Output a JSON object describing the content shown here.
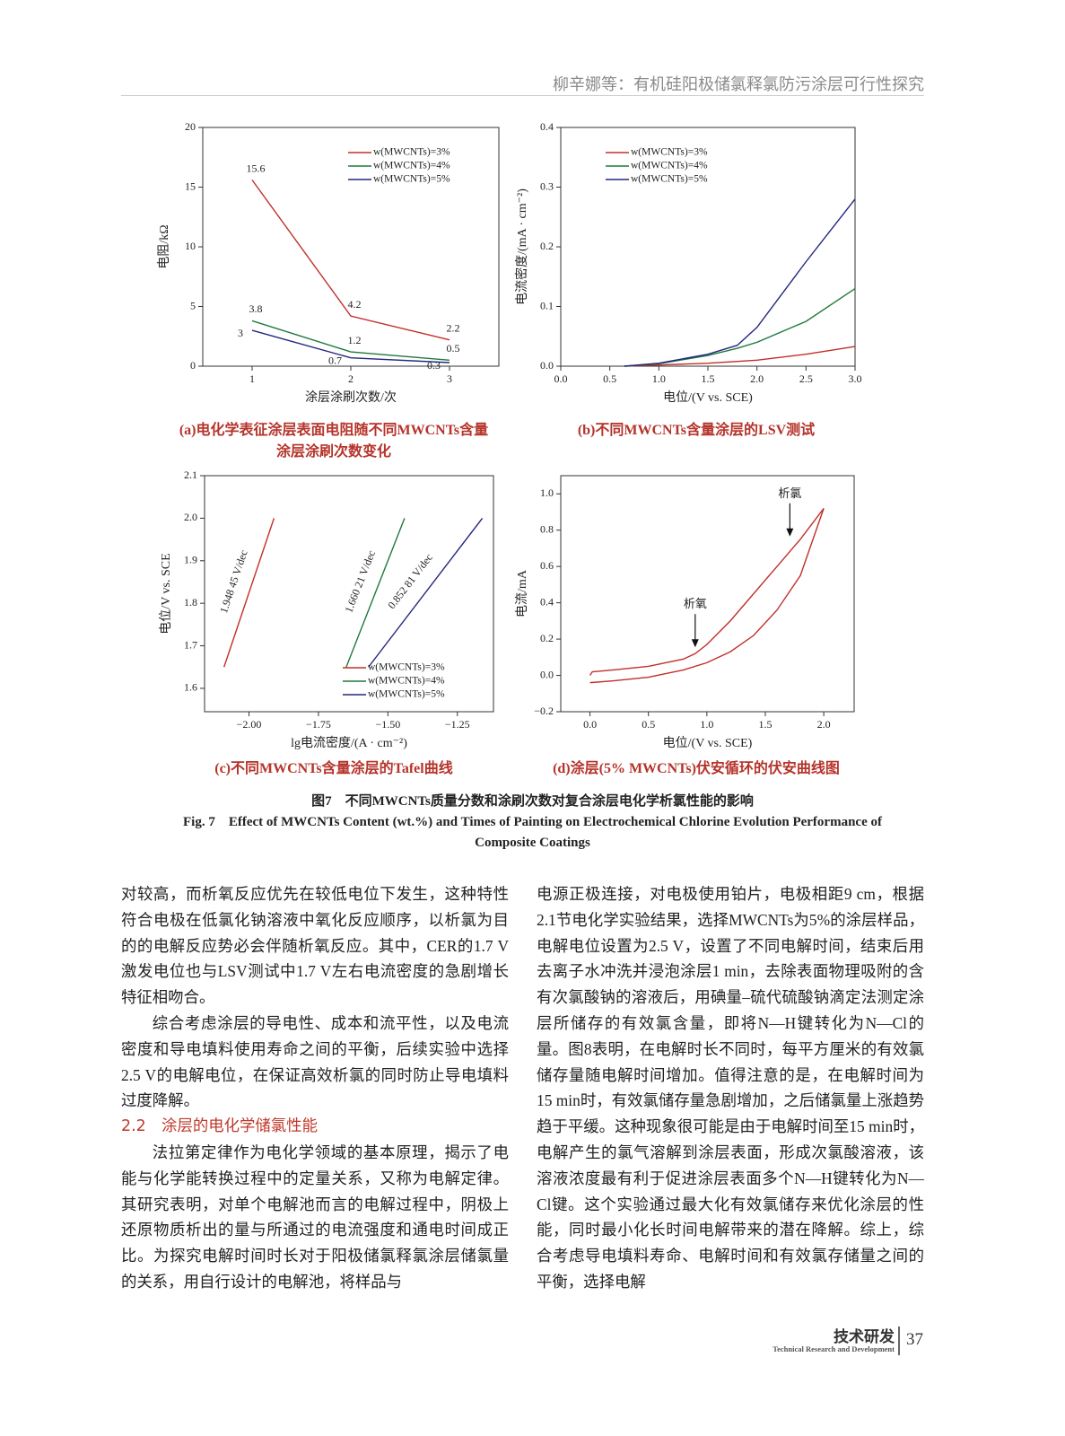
{
  "header": {
    "running_title": "柳辛娜等：有机硅阳极储氯释氯防污涂层可行性探究"
  },
  "chart_data": [
    {
      "type": "line",
      "xlabel": "涂层涂刷次数/次",
      "ylabel": "电阻/kΩ",
      "xlim": [
        0.5,
        3.5
      ],
      "ylim": [
        0,
        20
      ],
      "xticks": [
        1,
        2,
        3
      ],
      "yticks": [
        0,
        5,
        10,
        15,
        20
      ],
      "x": [
        1,
        2,
        3
      ],
      "data_labels": true,
      "legend": "upper right",
      "series": [
        {
          "name": "w(MWCNTs)=3%",
          "color": "#c0302a",
          "values": [
            15.6,
            4.2,
            2.2
          ]
        },
        {
          "name": "w(MWCNTs)=4%",
          "color": "#1f7a3c",
          "values": [
            3.8,
            1.2,
            0.5
          ]
        },
        {
          "name": "w(MWCNTs)=5%",
          "color": "#23277f",
          "values": [
            3,
            0.7,
            0.3
          ]
        }
      ]
    },
    {
      "type": "line",
      "xlabel": "电位/(V vs. SCE)",
      "ylabel": "电流密度/(mA · cm⁻²)",
      "xlim": [
        0,
        3
      ],
      "ylim": [
        0,
        0.4
      ],
      "xticks": [
        {
          "value": 0,
          "label": "0.0"
        },
        {
          "value": 0.5,
          "label": "0.5"
        },
        {
          "value": 1,
          "label": "1.0"
        },
        {
          "value": 1.5,
          "label": "1.5"
        },
        {
          "value": 2,
          "label": "2.0"
        },
        {
          "value": 2.5,
          "label": "2.5"
        },
        {
          "value": 3,
          "label": "3.0"
        }
      ],
      "yticks": [
        {
          "value": 0,
          "label": "0.0"
        },
        {
          "value": 0.1,
          "label": "0.1"
        },
        {
          "value": 0.2,
          "label": "0.2"
        },
        {
          "value": 0.3,
          "label": "0.3"
        },
        {
          "value": 0.4,
          "label": "0.4"
        }
      ],
      "x": [
        0.65,
        1,
        1.5,
        1.8,
        2,
        2.5,
        3
      ],
      "legend": "upper left",
      "series": [
        {
          "name": "w(MWCNTs)=3%",
          "color": "#c0302a",
          "values": [
            0,
            0.002,
            0.005,
            0.008,
            0.01,
            0.02,
            0.033
          ]
        },
        {
          "name": "w(MWCNTs)=4%",
          "color": "#1f7a3c",
          "values": [
            0,
            0.004,
            0.018,
            0.03,
            0.04,
            0.075,
            0.13
          ]
        },
        {
          "name": "w(MWCNTs)=5%",
          "color": "#23277f",
          "values": [
            0,
            0.005,
            0.02,
            0.035,
            0.065,
            0.175,
            0.28
          ]
        }
      ]
    },
    {
      "type": "line",
      "xlabel": "lg电流密度/(A · cm⁻²)",
      "ylabel": "电位/V vs. SCE",
      "xlim": [
        -2.16,
        -1.12
      ],
      "ylim": [
        1.545,
        2.1
      ],
      "xticks": [
        {
          "value": -2,
          "label": "−2.00"
        },
        {
          "value": -1.75,
          "label": "−1.75"
        },
        {
          "value": -1.5,
          "label": "−1.50"
        },
        {
          "value": -1.25,
          "label": "−1.25"
        }
      ],
      "yticks": [
        1.6,
        1.7,
        1.8,
        1.9,
        {
          "value": 2,
          "label": "2.0"
        },
        2.1
      ],
      "legend": "lower right",
      "series": [
        {
          "name": "w(MWCNTs)=3%",
          "color": "#c0302a",
          "x": [
            -2.09,
            -1.91
          ],
          "values": [
            1.65,
            2.0
          ],
          "slope_label": "1.948 45 V/dec"
        },
        {
          "name": "w(MWCNTs)=4%",
          "color": "#1f7a3c",
          "x": [
            -1.65,
            -1.44
          ],
          "values": [
            1.65,
            2.0
          ],
          "slope_label": "1.660 21 V/dec"
        },
        {
          "name": "w(MWCNTs)=5%",
          "color": "#23277f",
          "x": [
            -1.57,
            -1.16
          ],
          "values": [
            1.65,
            2.0
          ],
          "slope_label": "0.852 81 V/dec"
        }
      ]
    },
    {
      "type": "line",
      "xlabel": "电位/(V vs. SCE)",
      "ylabel": "电流/mA",
      "xlim": [
        -0.25,
        2.26
      ],
      "ylim": [
        -0.2,
        1.1
      ],
      "xticks": [
        {
          "value": 0,
          "label": "0.0"
        },
        {
          "value": 0.5,
          "label": "0.5"
        },
        {
          "value": 1,
          "label": "1.0"
        },
        {
          "value": 1.5,
          "label": "1.5"
        },
        {
          "value": 2,
          "label": "2.0"
        }
      ],
      "yticks": [
        {
          "value": -0.2,
          "label": "−0.2"
        },
        {
          "value": 0,
          "label": "0.0"
        },
        {
          "value": 0.2,
          "label": "0.2"
        },
        {
          "value": 0.4,
          "label": "0.4"
        },
        {
          "value": 0.6,
          "label": "0.6"
        },
        {
          "value": 0.8,
          "label": "0.8"
        },
        {
          "value": 1,
          "label": "1.0"
        }
      ],
      "x": [
        0,
        0.02,
        0.2,
        0.5,
        0.8,
        0.9,
        1,
        1.2,
        1.4,
        1.6,
        1.8,
        2,
        1.8,
        1.6,
        1.4,
        1.2,
        1,
        0.8,
        0.5,
        0.2,
        0
      ],
      "series": [
        {
          "color": "#c0302a",
          "values": [
            0,
            0.02,
            0.03,
            0.05,
            0.09,
            0.12,
            0.17,
            0.3,
            0.45,
            0.6,
            0.75,
            0.92,
            0.55,
            0.36,
            0.22,
            0.13,
            0.07,
            0.03,
            -0.01,
            -0.03,
            -0.04
          ]
        }
      ],
      "annotations": [
        {
          "text": "析氯",
          "x": 1.71,
          "y": 0.76
        },
        {
          "text": "析氧",
          "x": 0.9,
          "y": 0.15
        }
      ]
    }
  ],
  "figure": {
    "subcaptions": [
      [
        "(a)电化学表征涂层表面电阻随不同MWCNTs含量",
        "涂层涂刷次数变化"
      ],
      [
        "(b)不同MWCNTs含量涂层的LSV测试"
      ],
      [
        "(c)不同MWCNTs含量涂层的Tafel曲线"
      ],
      [
        "(d)涂层(5% MWCNTs)伏安循环的伏安曲线图"
      ]
    ],
    "caption_zh": "图7　不同MWCNTs质量分数和涂刷次数对复合涂层电化学析氯性能的影响",
    "caption_en": "Fig. 7　Effect of MWCNTs Content (wt.%) and Times of Painting on Electrochemical Chlorine Evolution Performance of Composite Coatings"
  },
  "body": {
    "left": [
      {
        "kind": "cont",
        "text": "对较高，而析氧反应优先在较低电位下发生，这种特性符合电极在低氯化钠溶液中氧化反应顺序，以析氯为目的的电解反应势必会伴随析氧反应。其中，CER的1.7 V激发电位也与LSV测试中1.7 V左右电流密度的急剧增长特征相吻合。"
      },
      {
        "kind": "para",
        "text": "综合考虑涂层的导电性、成本和流平性，以及电流密度和导电填料使用寿命之间的平衡，后续实验中选择2.5 V的电解电位，在保证高效析氯的同时防止导电填料过度降解。"
      },
      {
        "kind": "heading",
        "text": "2.2　涂层的电化学储氯性能"
      },
      {
        "kind": "para",
        "text": "法拉第定律作为电化学领域的基本原理，揭示了电能与化学能转换过程中的定量关系，又称为电解定律。其研究表明，对单个电解池而言的电解过程中，阴极上还原物质析出的量与所通过的电流强度和通电时间成正比。为探究电解时间时长对于阳极储氯释氯涂层储氯量的关系，用自行设计的电解池，将样品与"
      }
    ],
    "right": [
      {
        "kind": "cont",
        "text": "电源正极连接，对电极使用铂片，电极相距9 cm，根据2.1节电化学实验结果，选择MWCNTs为5%的涂层样品，电解电位设置为2.5 V，设置了不同电解时间，结束后用去离子水冲洗并浸泡涂层1 min，去除表面物理吸附的含有次氯酸钠的溶液后，用碘量–硫代硫酸钠滴定法测定涂层所储存的有效氯含量，即将N—H键转化为N—Cl的量。图8表明，在电解时长不同时，每平方厘米的有效氯储存量随电解时间增加。值得注意的是，在电解时间为15 min时，有效氯储存量急剧增加，之后储氯量上涨趋势趋于平缓。这种现象很可能是由于电解时间至15 min时，电解产生的氯气溶解到涂层表面，形成次氯酸溶液，该溶液浓度最有利于促进涂层表面多个N—H键转化为N—Cl键。这个实验通过最大化有效氯储存来优化涂层的性能，同时最小化长时间电解带来的潜在降解。综上，综合考虑导电填料寿命、电解时间和有效氯存储量之间的平衡，选择电解"
      }
    ]
  },
  "footer": {
    "section": "技术研发",
    "section_en": "Technical Research and Development",
    "page": "37"
  }
}
